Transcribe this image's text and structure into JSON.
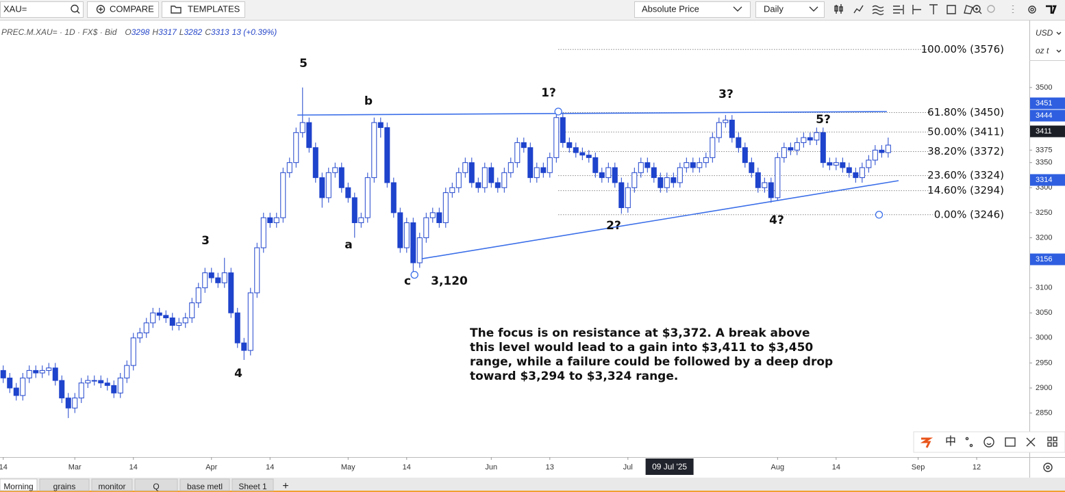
{
  "toolbar": {
    "search": "XAU=",
    "compare": "COMPARE",
    "templates": "TEMPLATES",
    "price_mode": "Absolute Price",
    "interval": "Daily"
  },
  "legend": {
    "symbol": "PREC.M.XAU= · 1D · FX$ · Bid",
    "ohlc": [
      {
        "key": "O",
        "value": 3298
      },
      {
        "key": "H",
        "value": 3317
      },
      {
        "key": "L",
        "value": 3282
      },
      {
        "key": "C",
        "value": 3313
      }
    ],
    "change": "13 (+0.39%)"
  },
  "axis_units": {
    "currency": "USD",
    "unit": "oz t"
  },
  "chart_data": {
    "type": "candlestick",
    "up_color": "#ffffff",
    "down_color": "#1e43cc",
    "outline_color": "#1e43cc",
    "xlim": [
      -0.5,
      157.7
    ],
    "ylim": [
      2762,
      3631
    ],
    "yticks": [
      3500,
      3375,
      3350,
      3300,
      3250,
      3200,
      3100,
      3050,
      3000,
      2950,
      2900,
      2850
    ],
    "xticks": [
      {
        "value": 0,
        "label": "14"
      },
      {
        "value": 11,
        "label": "Mar"
      },
      {
        "value": 20,
        "label": "14"
      },
      {
        "value": 32,
        "label": "Apr"
      },
      {
        "value": 41,
        "label": "14"
      },
      {
        "value": 53,
        "label": "May"
      },
      {
        "value": 62,
        "label": "14"
      },
      {
        "value": 75,
        "label": "Jun"
      },
      {
        "value": 84,
        "label": "13"
      },
      {
        "value": 96,
        "label": "Jul"
      },
      {
        "value": 119,
        "label": "Aug"
      },
      {
        "value": 128,
        "label": "14"
      },
      {
        "value": 140.6,
        "label": "Sep"
      },
      {
        "value": 149.6,
        "label": "12"
      }
    ],
    "crosshair_xtick": {
      "value": 102.4,
      "label": "09 Jul '25"
    },
    "open": [
      2935,
      2920,
      2900,
      2885,
      2920,
      2935,
      2930,
      2935,
      2940,
      2915,
      2880,
      2860,
      2880,
      2910,
      2915,
      2915,
      2910,
      2905,
      2890,
      2920,
      2945,
      3000,
      3010,
      3030,
      3050,
      3045,
      3040,
      3025,
      3030,
      3040,
      3070,
      3100,
      3130,
      3120,
      3110,
      3130,
      3050,
      2990,
      2975,
      3090,
      3180,
      3240,
      3230,
      3240,
      3330,
      3350,
      3410,
      3430,
      3380,
      3320,
      3280,
      3330,
      3340,
      3300,
      3280,
      3230,
      3240,
      3320,
      3430,
      3420,
      3310,
      3250,
      3180,
      3230,
      3150,
      3200,
      3240,
      3250,
      3230,
      3290,
      3300,
      3330,
      3350,
      3310,
      3300,
      3340,
      3310,
      3300,
      3330,
      3350,
      3390,
      3380,
      3320,
      3340,
      3330,
      3360,
      3440,
      3390,
      3380,
      3370,
      3365,
      3360,
      3330,
      3320,
      3340,
      3310,
      3260,
      3300,
      3330,
      3350,
      3340,
      3320,
      3300,
      3320,
      3310,
      3340,
      3350,
      3340,
      3350,
      3360,
      3400,
      3430,
      3435,
      3400,
      3380,
      3350,
      3330,
      3300,
      3310,
      3280,
      3360,
      3380,
      3375,
      3390,
      3400,
      3395,
      3410,
      3350,
      3345,
      3350,
      3340,
      3330,
      3320,
      3340,
      3355,
      3375,
      3370
    ],
    "high": [
      2945,
      2930,
      2910,
      2930,
      2945,
      2945,
      2945,
      2950,
      2950,
      2925,
      2890,
      2890,
      2920,
      2925,
      2925,
      2925,
      2920,
      2915,
      2930,
      2955,
      3010,
      3020,
      3040,
      3060,
      3060,
      3055,
      3050,
      3040,
      3050,
      3080,
      3110,
      3140,
      3140,
      3130,
      3160,
      3140,
      3060,
      3000,
      3100,
      3190,
      3250,
      3250,
      3250,
      3340,
      3360,
      3420,
      3500,
      3440,
      3390,
      3330,
      3340,
      3350,
      3350,
      3310,
      3290,
      3250,
      3330,
      3440,
      3440,
      3430,
      3320,
      3260,
      3240,
      3240,
      3210,
      3250,
      3260,
      3260,
      3300,
      3310,
      3340,
      3360,
      3360,
      3320,
      3350,
      3350,
      3320,
      3340,
      3360,
      3400,
      3400,
      3390,
      3350,
      3350,
      3370,
      3452,
      3450,
      3400,
      3390,
      3380,
      3375,
      3370,
      3340,
      3350,
      3350,
      3320,
      3310,
      3340,
      3360,
      3360,
      3350,
      3330,
      3330,
      3330,
      3350,
      3360,
      3360,
      3360,
      3370,
      3410,
      3440,
      3445,
      3445,
      3410,
      3390,
      3360,
      3340,
      3320,
      3320,
      3370,
      3390,
      3390,
      3400,
      3410,
      3410,
      3420,
      3420,
      3360,
      3360,
      3360,
      3350,
      3340,
      3350,
      3365,
      3385,
      3385,
      3400
    ],
    "low": [
      2910,
      2890,
      2875,
      2875,
      2910,
      2920,
      2920,
      2925,
      2905,
      2870,
      2840,
      2850,
      2870,
      2900,
      2905,
      2900,
      2895,
      2880,
      2880,
      2910,
      2935,
      2990,
      3000,
      3020,
      3035,
      3030,
      3015,
      3015,
      3020,
      3030,
      3060,
      3090,
      3110,
      3100,
      3100,
      3040,
      2980,
      2956,
      2965,
      3080,
      3170,
      3220,
      3220,
      3230,
      3320,
      3340,
      3400,
      3370,
      3310,
      3260,
      3270,
      3320,
      3290,
      3270,
      3200,
      3220,
      3230,
      3310,
      3400,
      3300,
      3240,
      3170,
      3170,
      3120,
      3140,
      3190,
      3230,
      3220,
      3220,
      3280,
      3290,
      3320,
      3300,
      3290,
      3290,
      3300,
      3290,
      3290,
      3320,
      3340,
      3370,
      3310,
      3310,
      3320,
      3320,
      3350,
      3380,
      3370,
      3360,
      3355,
      3350,
      3320,
      3310,
      3310,
      3300,
      3248,
      3250,
      3290,
      3320,
      3330,
      3310,
      3290,
      3290,
      3300,
      3300,
      3330,
      3330,
      3330,
      3340,
      3350,
      3390,
      3420,
      3390,
      3370,
      3340,
      3320,
      3290,
      3290,
      3270,
      3275,
      3350,
      3365,
      3365,
      3380,
      3385,
      3385,
      3340,
      3335,
      3335,
      3330,
      3320,
      3310,
      3310,
      3330,
      3345,
      3360,
      3360
    ],
    "close": [
      2920,
      2900,
      2885,
      2920,
      2935,
      2930,
      2935,
      2940,
      2915,
      2880,
      2860,
      2880,
      2910,
      2915,
      2915,
      2910,
      2905,
      2890,
      2920,
      2945,
      3000,
      3010,
      3030,
      3050,
      3045,
      3040,
      3025,
      3030,
      3040,
      3070,
      3100,
      3130,
      3120,
      3110,
      3130,
      3050,
      2990,
      2975,
      3090,
      3180,
      3240,
      3230,
      3240,
      3330,
      3350,
      3410,
      3430,
      3380,
      3320,
      3280,
      3330,
      3340,
      3300,
      3280,
      3230,
      3240,
      3320,
      3430,
      3420,
      3310,
      3250,
      3180,
      3230,
      3150,
      3200,
      3240,
      3250,
      3230,
      3290,
      3300,
      3330,
      3350,
      3310,
      3300,
      3340,
      3310,
      3300,
      3330,
      3350,
      3390,
      3380,
      3320,
      3340,
      3330,
      3360,
      3440,
      3390,
      3380,
      3370,
      3365,
      3360,
      3330,
      3320,
      3340,
      3310,
      3260,
      3300,
      3330,
      3350,
      3340,
      3320,
      3300,
      3320,
      3310,
      3340,
      3350,
      3340,
      3350,
      3360,
      3400,
      3430,
      3435,
      3400,
      3380,
      3350,
      3330,
      3300,
      3310,
      3280,
      3360,
      3380,
      3375,
      3390,
      3400,
      3395,
      3410,
      3350,
      3345,
      3350,
      3340,
      3330,
      3320,
      3340,
      3355,
      3375,
      3370,
      3385
    ],
    "fib_levels": [
      {
        "value": 3576,
        "label": "100.00% (3576)"
      },
      {
        "value": 3450,
        "label": "61.80% (3450)"
      },
      {
        "value": 3411,
        "label": "50.00% (3411)"
      },
      {
        "value": 3372,
        "label": "38.20% (3372)"
      },
      {
        "value": 3324,
        "label": "23.60% (3324)"
      },
      {
        "value": 3294,
        "label": "14.60% (3294)"
      },
      {
        "value": 3246,
        "label": "0.00% (3246)"
      }
    ],
    "trendlines": [
      {
        "color": "#3a6ee8",
        "x": [
          45.2,
          135.8
        ],
        "values": [
          3445,
          3452
        ]
      },
      {
        "color": "#3a6ee8",
        "x": [
          64.3,
          137.6
        ],
        "values": [
          3158,
          3314
        ]
      }
    ],
    "anchor_points": {
      "x": [
        85.3,
        63.2,
        134.6
      ],
      "values": [
        3452,
        3126,
        3246
      ]
    },
    "axis_tags": [
      {
        "value": 3451,
        "color": "#2f5fe0"
      },
      {
        "value": 3444,
        "color": "#2f5fe0"
      },
      {
        "value": 3411,
        "color": "#1c1f26"
      },
      {
        "value": 3314,
        "color": "#2f5fe0"
      },
      {
        "value": 3156,
        "color": "#2f5fe0"
      }
    ],
    "wave_labels": [
      "5",
      "b",
      "1?",
      "3?",
      "5?",
      "3",
      "a",
      "2?",
      "4?",
      "c",
      "3,120",
      "4"
    ],
    "note": [
      "The focus is on resistance at $3,372. A break above",
      "this level would lead to a gain into $3,411 to $3,450",
      "range, while a failure could be followed by a deep drop",
      "toward $3,294 to $3,324 range."
    ]
  },
  "floating_toolbar": {
    "language": "中"
  },
  "tabs": [
    "Morning",
    "grains",
    "monitor",
    "Q",
    "base metl",
    "Sheet 1"
  ],
  "add_tab": "+"
}
